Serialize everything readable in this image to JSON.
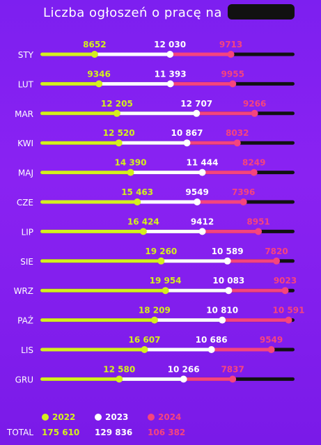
{
  "title": "Liczba ogłoszeń o pracę na",
  "colors": {
    "c2022": "#d4ef1e",
    "c2023": "#ffffff",
    "c2024": "#f5447e",
    "track": "#111111"
  },
  "chart_data": {
    "type": "bar",
    "categories": [
      "STY",
      "LUT",
      "MAR",
      "KWI",
      "MAJ",
      "CZE",
      "LIP",
      "SIE",
      "WRZ",
      "PAŹ",
      "LIS",
      "GRU"
    ],
    "series": [
      {
        "name": "2022",
        "values": [
          8652,
          9346,
          12205,
          12520,
          14390,
          15463,
          16424,
          19260,
          19954,
          18209,
          16607,
          12580
        ],
        "labels": [
          "8652",
          "9346",
          "12 205",
          "12 520",
          "14 390",
          "15 463",
          "16 424",
          "19 260",
          "19 954",
          "18 209",
          "16 607",
          "12 580"
        ]
      },
      {
        "name": "2023",
        "values": [
          12030,
          11393,
          12707,
          10867,
          11444,
          9549,
          9412,
          10589,
          10083,
          10810,
          10686,
          10266
        ],
        "labels": [
          "12 030",
          "11 393",
          "12 707",
          "10 867",
          "11 444",
          "9549",
          "9412",
          "10 589",
          "10 083",
          "10 810",
          "10 686",
          "10 266"
        ]
      },
      {
        "name": "2024",
        "values": [
          9713,
          9955,
          9266,
          8032,
          8249,
          7396,
          8951,
          7820,
          9023,
          10591,
          9549,
          7837
        ],
        "labels": [
          "9713",
          "9955",
          "9266",
          "8032",
          "8249",
          "7396",
          "8951",
          "7820",
          "9023",
          "10 591",
          "9549",
          "7837"
        ]
      }
    ]
  },
  "legend": {
    "items": [
      {
        "label": "2022",
        "color": "#d4ef1e"
      },
      {
        "label": "2023",
        "color": "#ffffff"
      },
      {
        "label": "2024",
        "color": "#f5447e"
      }
    ],
    "total_label": "TOTAL",
    "totals": [
      "175 610",
      "129 836",
      "106 382"
    ]
  }
}
